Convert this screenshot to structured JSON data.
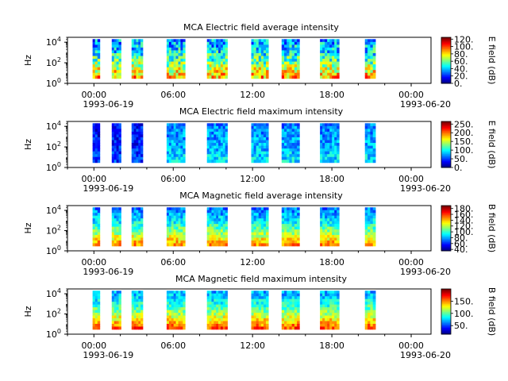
{
  "figure": {
    "instrument": "MCA",
    "panels": [
      {
        "title": "MCA  Electric field average intensity",
        "ylabel": "Hz",
        "cbar_label": "E field (dB)",
        "cbar_ticks": [
          "0.",
          "20.",
          "40.",
          "60.",
          "80.",
          "100.",
          "120."
        ],
        "cbar_range": [
          0,
          125
        ]
      },
      {
        "title": "MCA  Electric field maximum intensity",
        "ylabel": "Hz",
        "cbar_label": "E field (dB)",
        "cbar_ticks": [
          "0.",
          "50.",
          "100.",
          "150.",
          "200.",
          "250."
        ],
        "cbar_range": [
          0,
          265
        ]
      },
      {
        "title": "MCA  Magnetic field average intensity",
        "ylabel": "Hz",
        "cbar_label": "B field (dB)",
        "cbar_ticks": [
          "40.",
          "60.",
          "80.",
          "100.",
          "120.",
          "140.",
          "160.",
          "180."
        ],
        "cbar_range": [
          35,
          190
        ]
      },
      {
        "title": "MCA  Magnetic field maximum intensity",
        "ylabel": "Hz",
        "cbar_label": "B field (dB)",
        "cbar_ticks": [
          "50.",
          "100.",
          "150."
        ],
        "cbar_range": [
          15,
          200
        ]
      }
    ],
    "x_ticks": [
      {
        "time": "00:00",
        "date": "1993-06-19"
      },
      {
        "time": "06:00",
        "date": ""
      },
      {
        "time": "12:00",
        "date": ""
      },
      {
        "time": "18:00",
        "date": ""
      },
      {
        "time": "00:00",
        "date": "1993-06-20"
      }
    ],
    "y_ticks": [
      "10",
      "10",
      "10"
    ],
    "y_tick_exponents": [
      "0",
      "2",
      "4"
    ]
  },
  "chart_data": {
    "type": "heatmap",
    "x_unit": "hours since 1993-06-19 00:00",
    "xlim": [
      "1993-06-18 22:00",
      "1993-06-20 01:30"
    ],
    "y_scale": "log",
    "ylim": [
      1,
      30000
    ],
    "data_intervals_hours": [
      [
        -0.1,
        0.45
      ],
      [
        1.35,
        2.05
      ],
      [
        2.85,
        3.7
      ],
      [
        5.5,
        6.9
      ],
      [
        8.55,
        10.1
      ],
      [
        11.9,
        13.2
      ],
      [
        14.2,
        15.55
      ],
      [
        17.1,
        18.55
      ],
      [
        20.5,
        21.3
      ]
    ],
    "colormap": "jet",
    "panels": [
      {
        "name": "Electric field average intensity",
        "unit": "dB",
        "range": [
          0,
          125
        ]
      },
      {
        "name": "Electric field maximum intensity",
        "unit": "dB",
        "range": [
          0,
          265
        ]
      },
      {
        "name": "Magnetic field average intensity",
        "unit": "dB",
        "range": [
          35,
          190
        ]
      },
      {
        "name": "Magnetic field maximum intensity",
        "unit": "dB",
        "range": [
          15,
          200
        ]
      }
    ]
  }
}
